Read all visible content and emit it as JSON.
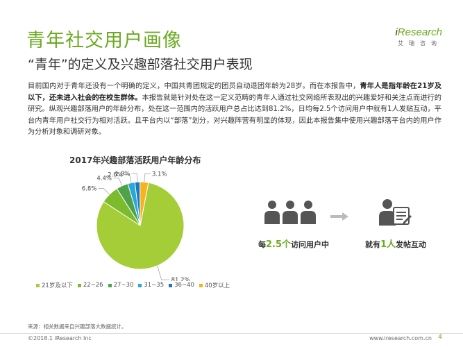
{
  "header": {
    "title": "青年社交用户画像",
    "subtitle": "“青年”的定义及兴趣部落社交用户表现",
    "logo_i": "i",
    "logo_text": "Research",
    "logo_sub": "艾瑞咨询"
  },
  "paragraph": {
    "p1": "目前国内对于青年还没有一个明确的定义，中国共青团规定的团员自动退团年龄为28岁。而在本报告中，",
    "b1": "青年人是指年龄在21岁及以下，还未进入社会的在校生群体。",
    "p2": "本报告就是针对处在这一定义范畴的青年人通过社交网络所表现出的兴趣爱好和关注点而进行的研究。纵观兴趣部落用户的年龄分布，处在这一范围内的活跃用户总占比达到81.2%，日均每2.5个访问用户中就有1人发贴互动，平台内青年用户社交行为相对活跃。且平台内以“部落”划分，对兴趣阵营有明显的体现，因此本报告集中使用兴趣部落平台内的用户作为分析对象和调研对象。"
  },
  "chart_data": {
    "type": "pie",
    "title": "2017年兴趣部落活跃用户年龄分布",
    "categories": [
      "21岁及以下",
      "22~26",
      "27~30",
      "31~35",
      "36~40",
      "40岁以上"
    ],
    "values": [
      81.2,
      6.8,
      4.4,
      2.6,
      1.9,
      3.1
    ],
    "value_labels": [
      "81.2%",
      "6.8%",
      "4.4%",
      "2.6%",
      "1.9%",
      "3.1%"
    ],
    "colors": [
      "#a5cd38",
      "#7dbb2e",
      "#4fa24a",
      "#2aa7d6",
      "#1878c0",
      "#f7b21c"
    ],
    "legend": "bottom"
  },
  "stats": {
    "left_prefix": "每",
    "left_number": "2.5个",
    "left_suffix": "访问用户中",
    "right_prefix": "就有",
    "right_number": "1人",
    "right_suffix": "发帖互动"
  },
  "footer": {
    "source": "来源：相关数据来自兴趣部落大数据统计。",
    "copyright": "©2018.1 iResearch Inc",
    "url": "www.iresearch.com.cn",
    "page": "4"
  }
}
